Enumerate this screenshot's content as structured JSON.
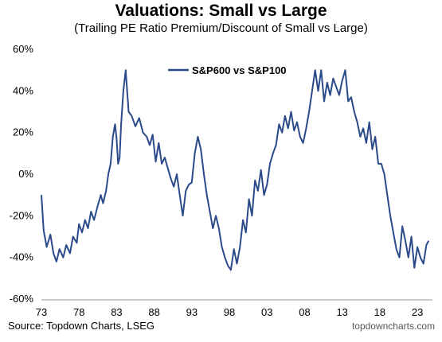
{
  "chart_data": {
    "type": "line",
    "title": "Valuations: Small vs Large",
    "subtitle": "(Trailing PE Ratio Premium/Discount of Small vs Large)",
    "xlabel": "",
    "ylabel": "",
    "x_ticks": [
      "73",
      "78",
      "83",
      "88",
      "93",
      "98",
      "03",
      "08",
      "13",
      "18",
      "23"
    ],
    "x_tick_years": [
      1973,
      1978,
      1983,
      1988,
      1993,
      1998,
      2003,
      2008,
      2013,
      2018,
      2023
    ],
    "y_ticks": [
      "60%",
      "40%",
      "20%",
      "0%",
      "-20%",
      "-40%",
      "-60%"
    ],
    "xlim": [
      1973,
      2025
    ],
    "ylim": [
      -60,
      60
    ],
    "grid": false,
    "legend_position": "top-center",
    "color": "#2b4a8a",
    "series": [
      {
        "name": "S&P600 vs S&P100",
        "x": [
          1973.0,
          1973.3,
          1973.7,
          1974.2,
          1974.6,
          1975.0,
          1975.4,
          1975.9,
          1976.3,
          1976.8,
          1977.2,
          1977.7,
          1978.0,
          1978.4,
          1978.8,
          1979.2,
          1979.6,
          1980.0,
          1980.5,
          1980.9,
          1981.2,
          1981.6,
          1981.9,
          1982.2,
          1982.5,
          1982.8,
          1983.0,
          1983.2,
          1983.4,
          1983.6,
          1983.9,
          1984.2,
          1984.6,
          1985.0,
          1985.5,
          1986.0,
          1986.5,
          1987.0,
          1987.4,
          1987.8,
          1988.2,
          1988.6,
          1989.0,
          1989.4,
          1989.8,
          1990.2,
          1990.6,
          1991.0,
          1991.4,
          1991.8,
          1992.2,
          1992.6,
          1993.0,
          1993.4,
          1993.8,
          1994.2,
          1994.6,
          1995.0,
          1995.4,
          1995.8,
          1996.2,
          1996.6,
          1997.0,
          1997.4,
          1997.8,
          1998.2,
          1998.6,
          1999.0,
          1999.4,
          1999.8,
          2000.2,
          2000.6,
          2001.0,
          2001.4,
          2001.8,
          2002.2,
          2002.6,
          2003.0,
          2003.4,
          2003.8,
          2004.2,
          2004.6,
          2005.0,
          2005.4,
          2005.8,
          2006.2,
          2006.6,
          2007.0,
          2007.4,
          2007.8,
          2008.2,
          2008.6,
          2009.0,
          2009.4,
          2009.8,
          2010.2,
          2010.6,
          2011.0,
          2011.4,
          2011.8,
          2012.2,
          2012.6,
          2013.0,
          2013.4,
          2013.8,
          2014.2,
          2014.6,
          2015.0,
          2015.4,
          2015.8,
          2016.2,
          2016.6,
          2017.0,
          2017.4,
          2017.8,
          2018.2,
          2018.6,
          2019.0,
          2019.4,
          2019.8,
          2020.2,
          2020.6,
          2021.0,
          2021.4,
          2021.8,
          2022.2,
          2022.6,
          2023.0,
          2023.4,
          2023.8,
          2024.2,
          2024.5
        ],
        "y": [
          -10,
          -27,
          -35,
          -29,
          -38,
          -42,
          -36,
          -40,
          -34,
          -38,
          -30,
          -33,
          -24,
          -28,
          -22,
          -26,
          -18,
          -22,
          -15,
          -10,
          -14,
          -8,
          0,
          5,
          18,
          24,
          17,
          5,
          8,
          24,
          40,
          50,
          30,
          28,
          23,
          27,
          20,
          18,
          14,
          19,
          6,
          15,
          5,
          8,
          3,
          -2,
          -6,
          0,
          -10,
          -20,
          -8,
          -5,
          -4,
          10,
          18,
          12,
          0,
          -10,
          -18,
          -26,
          -20,
          -26,
          -35,
          -40,
          -44,
          -46,
          -36,
          -43,
          -35,
          -22,
          -28,
          -12,
          -20,
          -3,
          -8,
          2,
          -10,
          -5,
          5,
          10,
          14,
          24,
          20,
          28,
          22,
          30,
          21,
          25,
          18,
          15,
          22,
          30,
          40,
          50,
          40,
          50,
          35,
          44,
          38,
          46,
          42,
          38,
          45,
          50,
          35,
          37,
          30,
          25,
          18,
          22,
          15,
          25,
          12,
          18,
          5,
          5,
          0,
          -10,
          -20,
          -28,
          -36,
          -40,
          -25,
          -32,
          -40,
          -30,
          -45,
          -35,
          -40,
          -43,
          -34,
          -32
        ]
      }
    ]
  },
  "source": "Source: Topdown Charts, LSEG",
  "credit": "topdowncharts.com"
}
